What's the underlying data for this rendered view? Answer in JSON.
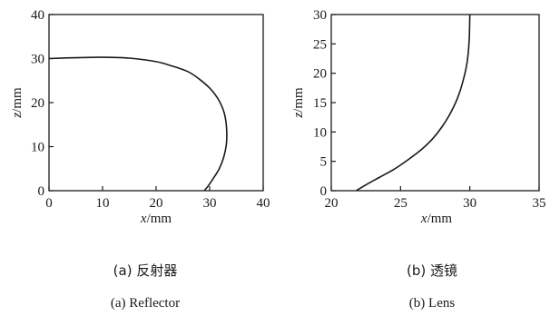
{
  "figure": {
    "captions": [
      {
        "cn": "(a) 反射器",
        "en": "(a) Reflector"
      },
      {
        "cn": "(b) 透镜",
        "en": "(b) Lens"
      }
    ]
  },
  "chart_data": [
    {
      "type": "line",
      "xlabel": "x/mm",
      "ylabel": "z/mm",
      "xlim": [
        0,
        40
      ],
      "ylim": [
        0,
        40
      ],
      "xticks": [
        0,
        10,
        20,
        30,
        40
      ],
      "yticks": [
        0,
        10,
        20,
        30,
        40
      ],
      "grid": false,
      "series": [
        {
          "x": [
            0,
            5,
            10,
            15,
            20,
            23,
            26,
            28,
            30,
            31.5,
            32.5,
            33,
            33.2,
            33.1,
            32.6,
            31.8,
            30.8,
            29.8,
            29
          ],
          "y": [
            30,
            30.2,
            30.3,
            30.1,
            29.3,
            28.3,
            27,
            25.4,
            23.3,
            21,
            18.5,
            16,
            13,
            10.3,
            7.5,
            5,
            3,
            1.2,
            0
          ]
        }
      ]
    },
    {
      "type": "line",
      "xlabel": "x/mm",
      "ylabel": "z/mm",
      "xlim": [
        20,
        35
      ],
      "ylim": [
        0,
        30
      ],
      "xticks": [
        20,
        25,
        30,
        35
      ],
      "yticks": [
        0,
        5,
        10,
        15,
        20,
        25,
        30
      ],
      "grid": false,
      "series": [
        {
          "x": [
            21.8,
            22.5,
            23.5,
            24.5,
            25.5,
            26.5,
            27.3,
            28,
            28.6,
            29.1,
            29.5,
            29.8,
            29.95,
            30
          ],
          "y": [
            0,
            1,
            2.3,
            3.6,
            5.2,
            7,
            8.8,
            10.9,
            13.2,
            15.7,
            18.6,
            21.8,
            25.5,
            30
          ]
        }
      ]
    }
  ]
}
